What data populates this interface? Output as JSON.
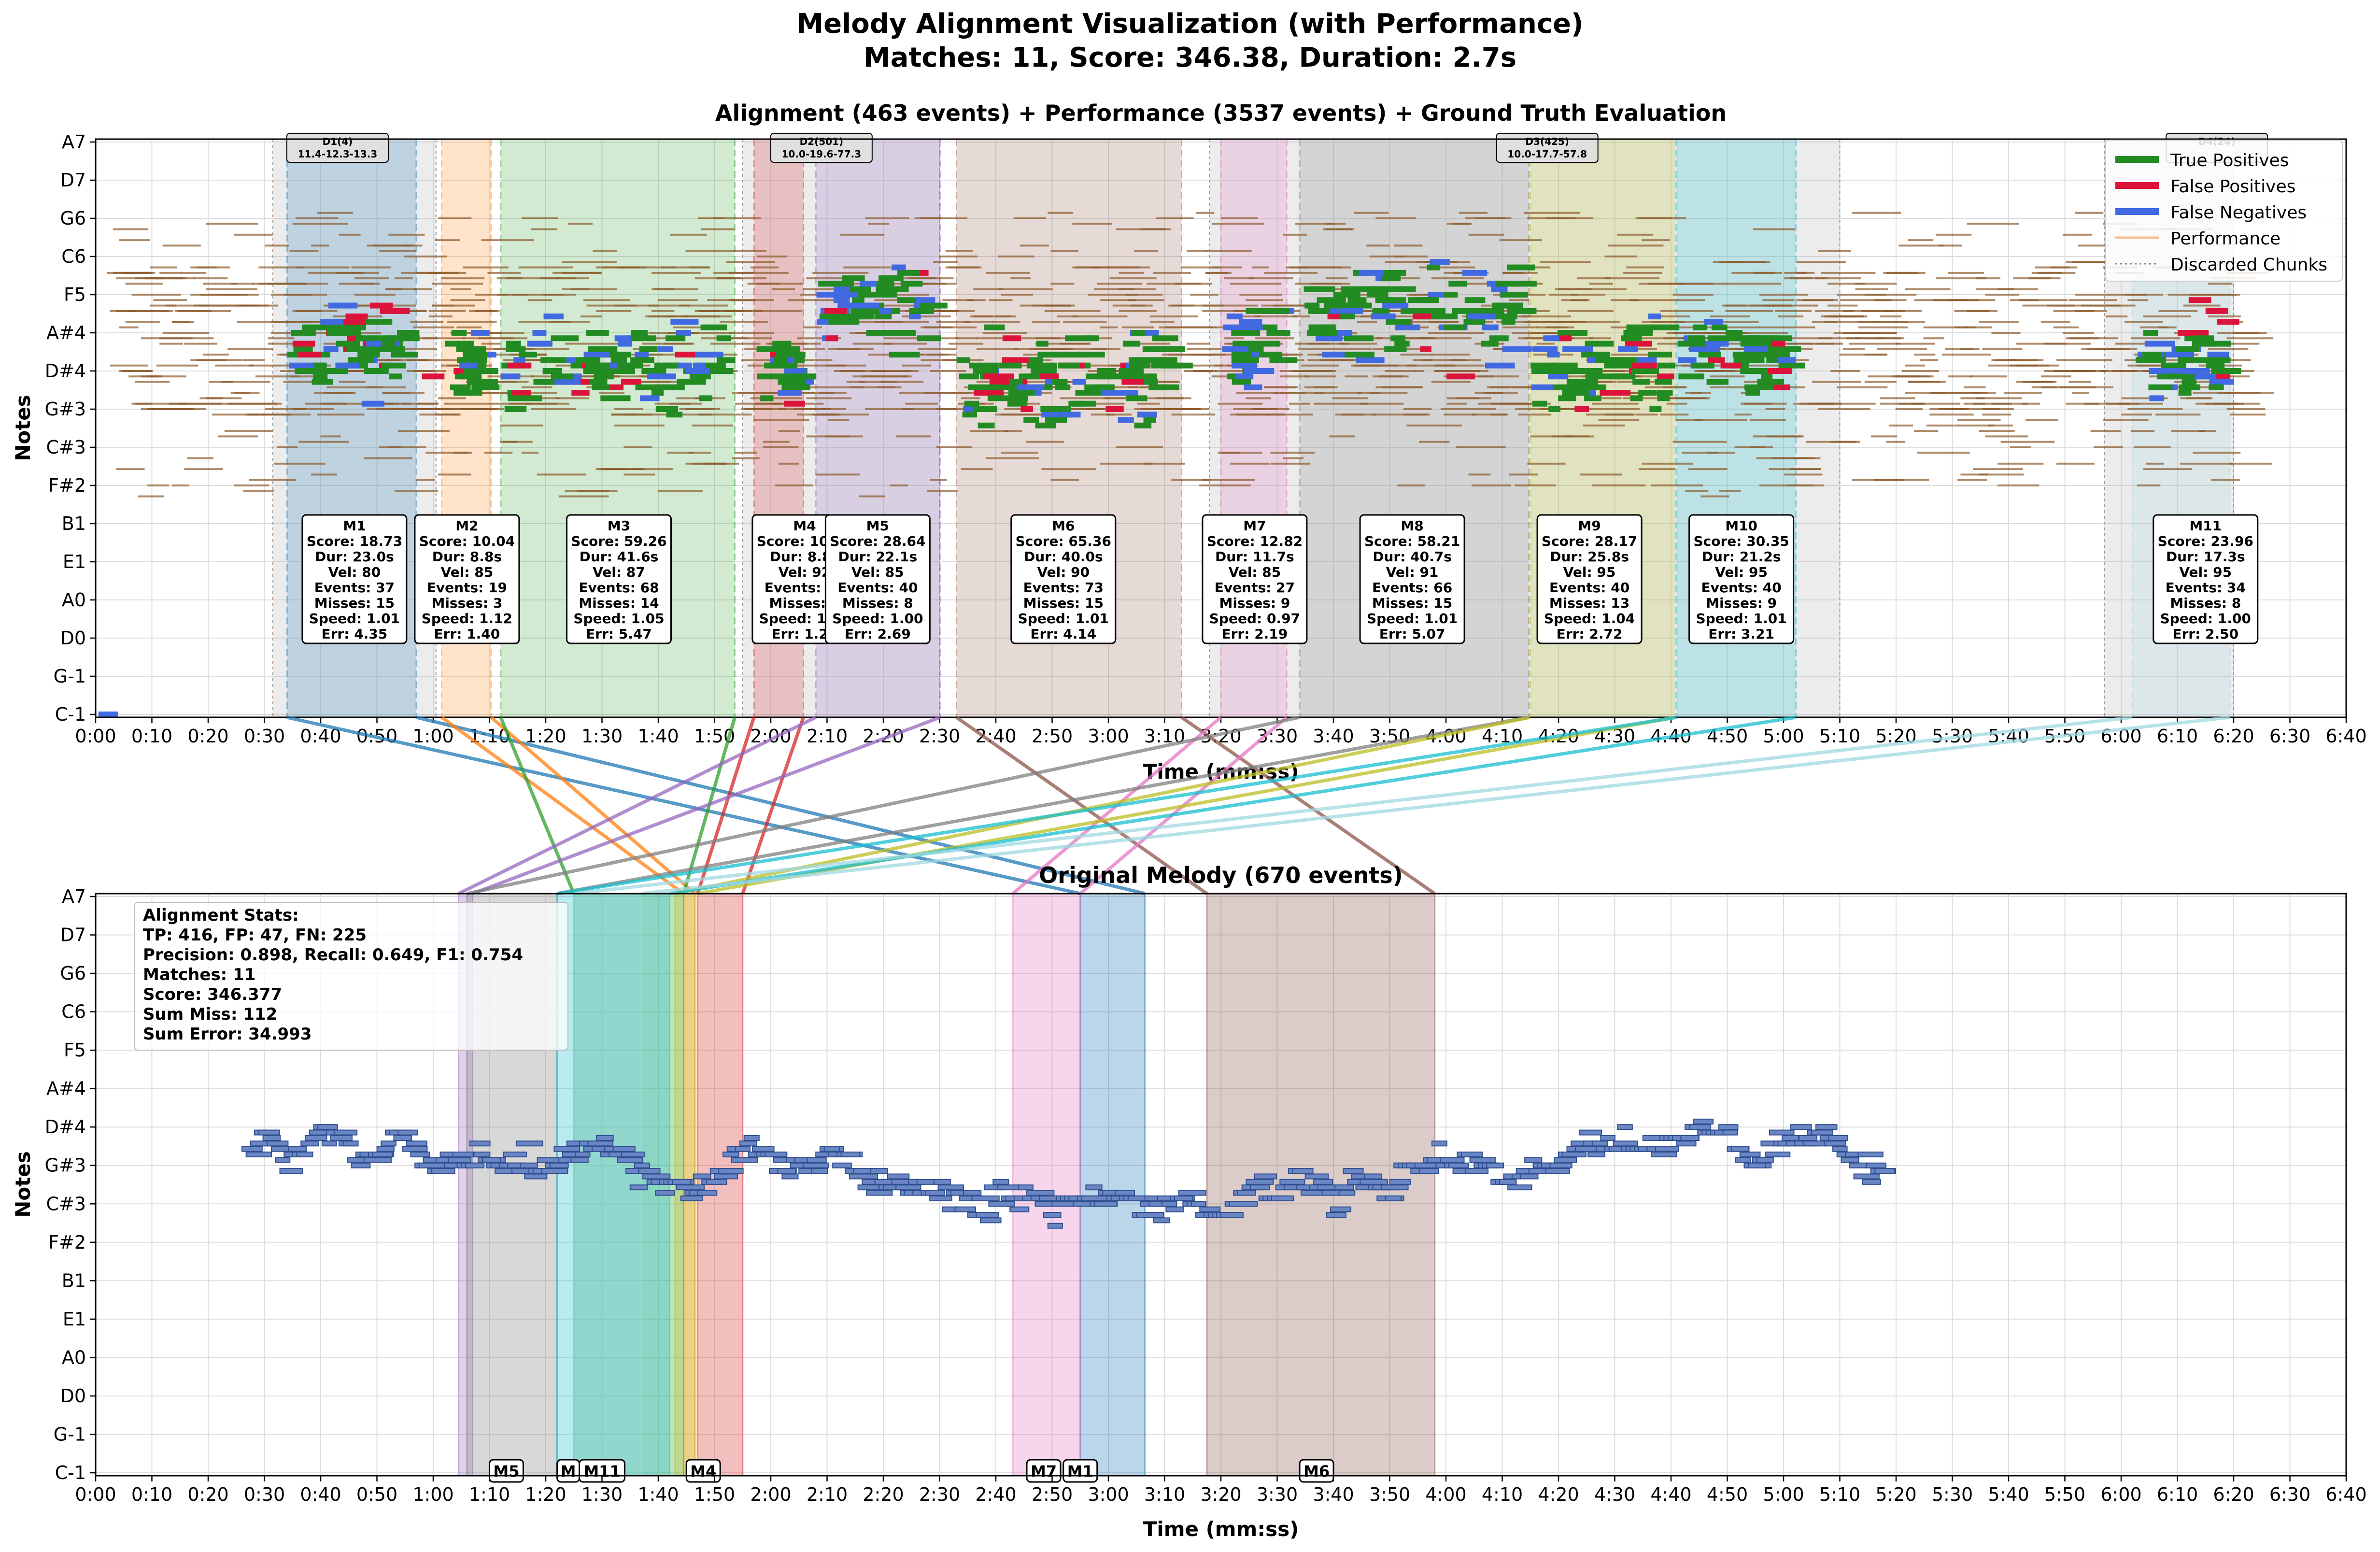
{
  "suptitle": [
    "Melody Alignment Visualization (with Performance)",
    "Matches: 11, Score: 346.38, Duration: 2.7s"
  ],
  "colors": {
    "tp": "#228B22",
    "fp": "#DC143C",
    "fn": "#4169E1",
    "perf": "#8B5A2B",
    "orig": "#2F4F8F",
    "discarded": "#bbbbbb",
    "grid": "#dddddd"
  },
  "chart_data": [
    {
      "type": "piano-roll",
      "title": "Alignment (463 events) + Performance (3537 events) + Ground Truth Evaluation",
      "xlabel": "Time (mm:ss)",
      "ylabel": "Notes",
      "xlim": [
        0,
        400
      ],
      "x_ticks": [
        "0:00",
        "0:10",
        "0:20",
        "0:30",
        "0:40",
        "0:50",
        "1:00",
        "1:10",
        "1:20",
        "1:30",
        "1:40",
        "1:50",
        "2:00",
        "2:10",
        "2:20",
        "2:30",
        "2:40",
        "2:50",
        "3:00",
        "3:10",
        "3:20",
        "3:30",
        "3:40",
        "3:50",
        "4:00",
        "4:10",
        "4:20",
        "4:30",
        "4:40",
        "4:50",
        "5:00",
        "5:10",
        "5:20",
        "5:30",
        "5:40",
        "5:50",
        "6:00",
        "6:10",
        "6:20",
        "6:30",
        "6:40"
      ],
      "y_ticks": [
        "A7",
        "D7",
        "G6",
        "C6",
        "F5",
        "A#4",
        "D#4",
        "G#3",
        "C#3",
        "F#2",
        "B1",
        "E1",
        "A0",
        "D0",
        "G-1",
        "C-1"
      ],
      "legend": {
        "placement": "top-right",
        "entries": [
          {
            "label": "True Positives",
            "color": "#228B22",
            "style": "thick"
          },
          {
            "label": "False Positives",
            "color": "#DC143C",
            "style": "thick"
          },
          {
            "label": "False Negatives",
            "color": "#4169E1",
            "style": "thick"
          },
          {
            "label": "Performance",
            "color": "#F4A460",
            "style": "thin"
          },
          {
            "label": "Discarded Chunks",
            "color": "#888888",
            "style": "dotted"
          }
        ]
      },
      "discarded_chunks": [
        {
          "label": "D1(4)",
          "sub": "11.4-12.3-13.3",
          "start": 31.5,
          "end": 60.5
        },
        {
          "label": "D2(501)",
          "sub": "10.0-19.6-77.3",
          "start": 115,
          "end": 150
        },
        {
          "label": "D3(425)",
          "sub": "10.0-17.7-57.8",
          "start": 198,
          "end": 310
        },
        {
          "label": "D4(24)",
          "sub": "",
          "start": 357,
          "end": 380
        }
      ],
      "matches": [
        {
          "id": "M1",
          "score": "Score: 18.73",
          "dur": "Dur: 23.0s",
          "vel": "Vel: 80",
          "events": "Events: 37",
          "misses": "Misses: 15",
          "speed": "Speed: 1.01",
          "err": "Err: 4.35",
          "start": 34,
          "end": 57,
          "color": "#1f77b4",
          "orig_start": 175,
          "orig_end": 186.5
        },
        {
          "id": "M2",
          "score": "Score: 10.04",
          "dur": "Dur: 8.8s",
          "vel": "Vel: 85",
          "events": "Events: 19",
          "misses": "Misses: 3",
          "speed": "Speed: 1.12",
          "err": "Err: 1.40",
          "start": 61.5,
          "end": 70.3,
          "color": "#ff7f0e",
          "orig_start": 104.5,
          "orig_end": 106.5
        },
        {
          "id": "M3",
          "score": "Score: 59.26",
          "dur": "Dur: 41.6s",
          "vel": "Vel: 87",
          "events": "Events: 68",
          "misses": "Misses: 14",
          "speed": "Speed: 1.05",
          "err": "Err: 5.47",
          "start": 72,
          "end": 113.6,
          "color": "#2ca02c",
          "orig_start": 85,
          "orig_end": 104.5
        },
        {
          "id": "M4",
          "score": "Score: 10.84",
          "dur": "Dur: 8.8s",
          "vel": "Vel: 92",
          "events": "Events: 19",
          "misses": "Misses: 3",
          "speed": "Speed: 1.11",
          "err": "Err: 1.27",
          "start": 117,
          "end": 125.8,
          "color": "#d62728",
          "orig_start": 107,
          "orig_end": 115
        },
        {
          "id": "M5",
          "score": "Score: 28.64",
          "dur": "Dur: 22.1s",
          "vel": "Vel: 85",
          "events": "Events: 40",
          "misses": "Misses: 8",
          "speed": "Speed: 1.00",
          "err": "Err: 2.69",
          "start": 128,
          "end": 150.1,
          "color": "#9467bd",
          "orig_start": 64.5,
          "orig_end": 67
        },
        {
          "id": "M6",
          "score": "Score: 65.36",
          "dur": "Dur: 40.0s",
          "vel": "Vel: 90",
          "events": "Events: 73",
          "misses": "Misses: 15",
          "speed": "Speed: 1.01",
          "err": "Err: 4.14",
          "start": 153,
          "end": 193,
          "color": "#8c564b",
          "orig_start": 197.5,
          "orig_end": 238
        },
        {
          "id": "M7",
          "score": "Score: 12.82",
          "dur": "Dur: 11.7s",
          "vel": "Vel: 85",
          "events": "Events: 27",
          "misses": "Misses: 9",
          "speed": "Speed: 0.97",
          "err": "Err: 2.19",
          "start": 200,
          "end": 211.7,
          "color": "#e377c2",
          "orig_start": 163,
          "orig_end": 175
        },
        {
          "id": "M8",
          "score": "Score: 58.21",
          "dur": "Dur: 40.7s",
          "vel": "Vel: 91",
          "events": "Events: 66",
          "misses": "Misses: 15",
          "speed": "Speed: 1.01",
          "err": "Err: 5.07",
          "start": 214,
          "end": 254.7,
          "color": "#7f7f7f",
          "orig_start": 66,
          "orig_end": 82
        },
        {
          "id": "M9",
          "score": "Score: 28.17",
          "dur": "Dur: 25.8s",
          "vel": "Vel: 95",
          "events": "Events: 40",
          "misses": "Misses: 13",
          "speed": "Speed: 1.04",
          "err": "Err: 2.72",
          "start": 255,
          "end": 280.8,
          "color": "#bcbd22",
          "orig_start": 103,
          "orig_end": 107
        },
        {
          "id": "M10",
          "score": "Score: 30.35",
          "dur": "Dur: 21.2s",
          "vel": "Vel: 95",
          "events": "Events: 40",
          "misses": "Misses: 9",
          "speed": "Speed: 1.01",
          "err": "Err: 3.21",
          "start": 281,
          "end": 302.2,
          "color": "#17becf",
          "orig_start": 82,
          "orig_end": 102
        },
        {
          "id": "M11",
          "score": "Score: 23.96",
          "dur": "Dur: 17.3s",
          "vel": "Vel: 95",
          "events": "Events: 34",
          "misses": "Misses: 8",
          "speed": "Speed: 1.00",
          "err": "Err: 2.50",
          "start": 362,
          "end": 379.3,
          "color": "#9fd8e0",
          "orig_start": 85,
          "orig_end": 97
        }
      ]
    },
    {
      "type": "piano-roll",
      "title": "Original Melody (670 events)",
      "xlabel": "Time (mm:ss)",
      "ylabel": "Notes",
      "xlim": [
        0,
        400
      ],
      "stats": [
        "Alignment Stats:",
        "TP: 416, FP: 47, FN: 225",
        "Precision: 0.898, Recall: 0.649, F1: 0.754",
        "Matches: 11",
        "Score: 346.377",
        "Sum Miss: 112",
        "Sum Error: 34.993"
      ],
      "bottom_labels": [
        "M5",
        "M",
        "M11",
        "M4",
        "M7",
        "M1",
        "M6"
      ]
    }
  ]
}
